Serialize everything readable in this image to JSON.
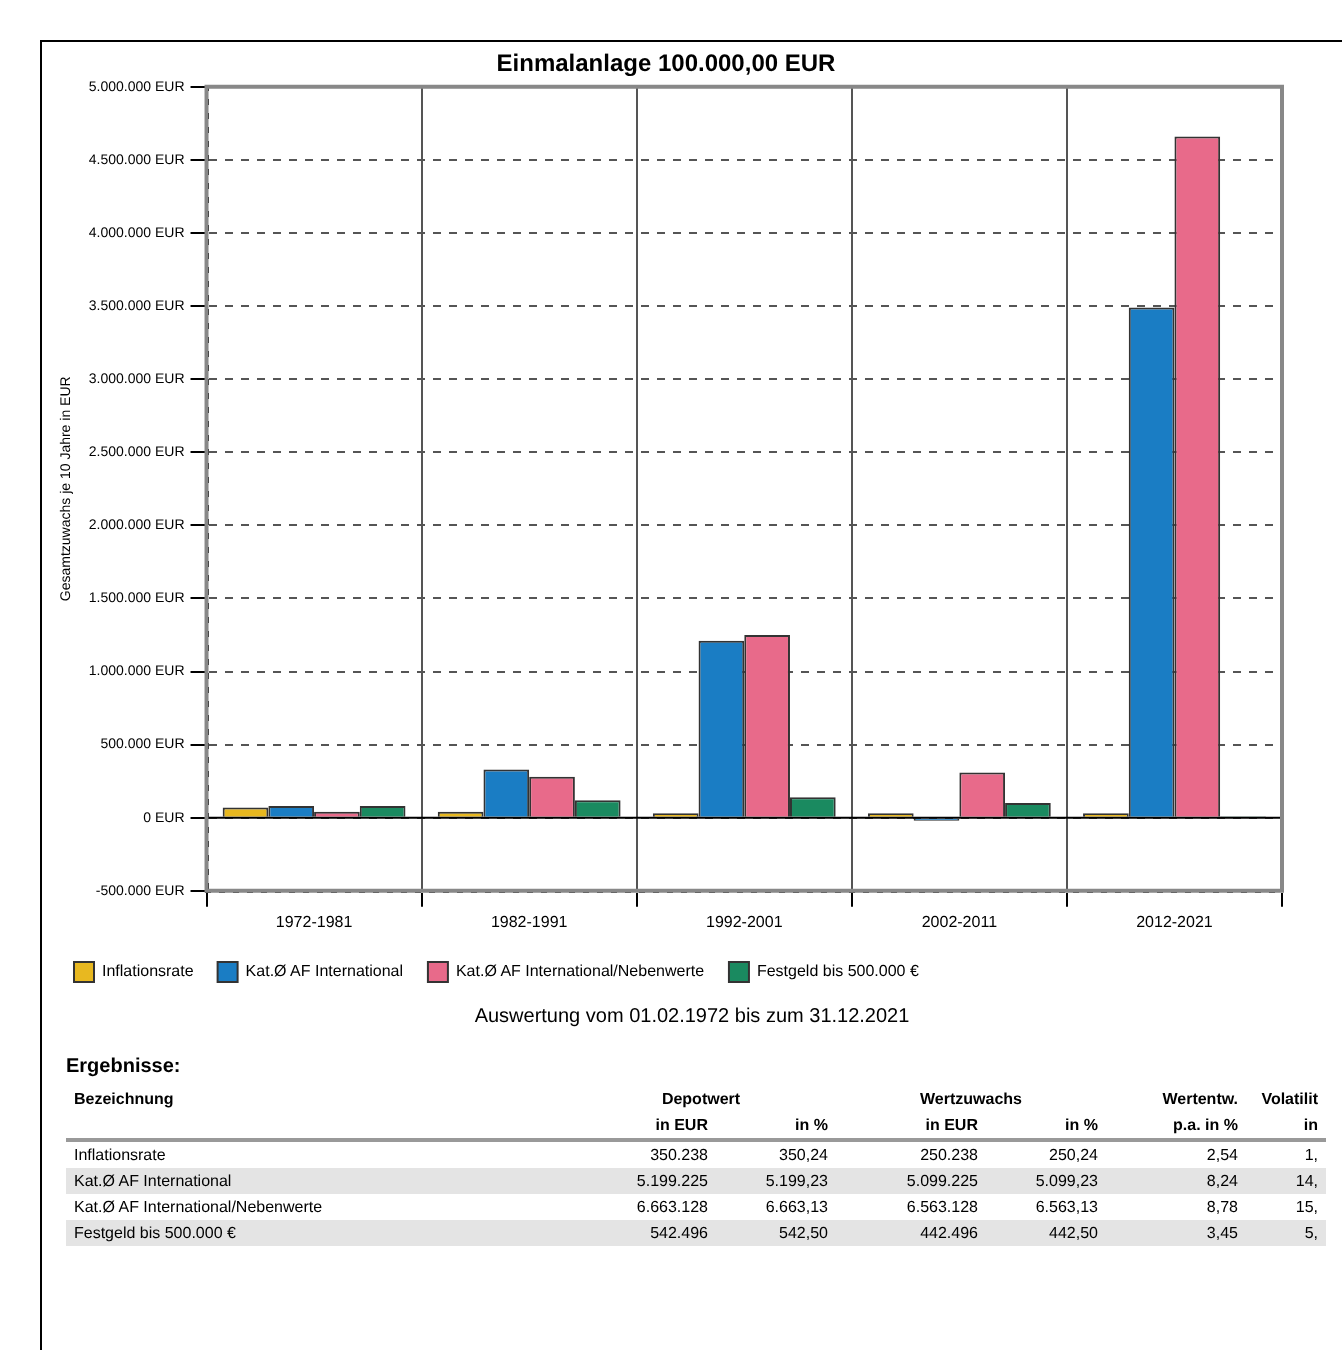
{
  "chart_data": {
    "type": "bar",
    "title": "Einmalanlage 100.000,00 EUR",
    "ylabel": "Gesamtzuwachs je 10 Jahre in EUR",
    "categories": [
      "1972-1981",
      "1982-1991",
      "1992-2001",
      "2002-2011",
      "2012-2021"
    ],
    "series": [
      {
        "name": "Inflationsrate",
        "color": "#e8b820",
        "values": [
          70000,
          40000,
          30000,
          30000,
          30000
        ]
      },
      {
        "name": "Kat.Ø AF International",
        "color": "#1a7dc4",
        "values": [
          80000,
          330000,
          1210000,
          -20000,
          3490000
        ]
      },
      {
        "name": "Kat.Ø AF International/Nebenwerte",
        "color": "#e86a8a",
        "values": [
          40000,
          280000,
          1250000,
          310000,
          4660000
        ]
      },
      {
        "name": "Festgeld bis 500.000 €",
        "color": "#1a8a60",
        "values": [
          80000,
          120000,
          140000,
          100000,
          10000
        ]
      }
    ],
    "ylim": [
      -500000,
      5000000
    ],
    "yticks": [
      {
        "value": -500000,
        "label": "-500.000 EUR"
      },
      {
        "value": 0,
        "label": "0 EUR"
      },
      {
        "value": 500000,
        "label": "500.000 EUR"
      },
      {
        "value": 1000000,
        "label": "1.000.000 EUR"
      },
      {
        "value": 1500000,
        "label": "1.500.000 EUR"
      },
      {
        "value": 2000000,
        "label": "2.000.000 EUR"
      },
      {
        "value": 2500000,
        "label": "2.500.000 EUR"
      },
      {
        "value": 3000000,
        "label": "3.000.000 EUR"
      },
      {
        "value": 3500000,
        "label": "3.500.000 EUR"
      },
      {
        "value": 4000000,
        "label": "4.000.000 EUR"
      },
      {
        "value": 4500000,
        "label": "4.500.000 EUR"
      },
      {
        "value": 5000000,
        "label": "5.000.000 EUR"
      }
    ],
    "grid": true,
    "legend": "bottom",
    "annotations": [
      "Auswertung vom 01.02.1972 bis zum 31.12.2021",
      "Ergebnisse:",
      "Bezeichnung",
      "Depotwert",
      "Wertzuwachs",
      "Wertentw.",
      "Volatilit",
      "in EUR",
      "in %",
      "in EUR",
      "in %",
      "p.a. in %",
      "in",
      "Inflationsrate",
      "350.238",
      "350,24",
      "250.238",
      "250,24",
      "2,54",
      "1,",
      "Kat.Ø AF International",
      "5.199.225",
      "5.199,23",
      "5.099.225",
      "5.099,23",
      "8,24",
      "14,",
      "Kat.Ø AF International/Nebenwerte",
      "6.663.128",
      "6.663,13",
      "6.563.128",
      "6.563,13",
      "8,78",
      "15,",
      "Festgeld bis 500.000 €",
      "542.496",
      "542,50",
      "442.496",
      "442,50",
      "3,45",
      "5,"
    ]
  }
}
